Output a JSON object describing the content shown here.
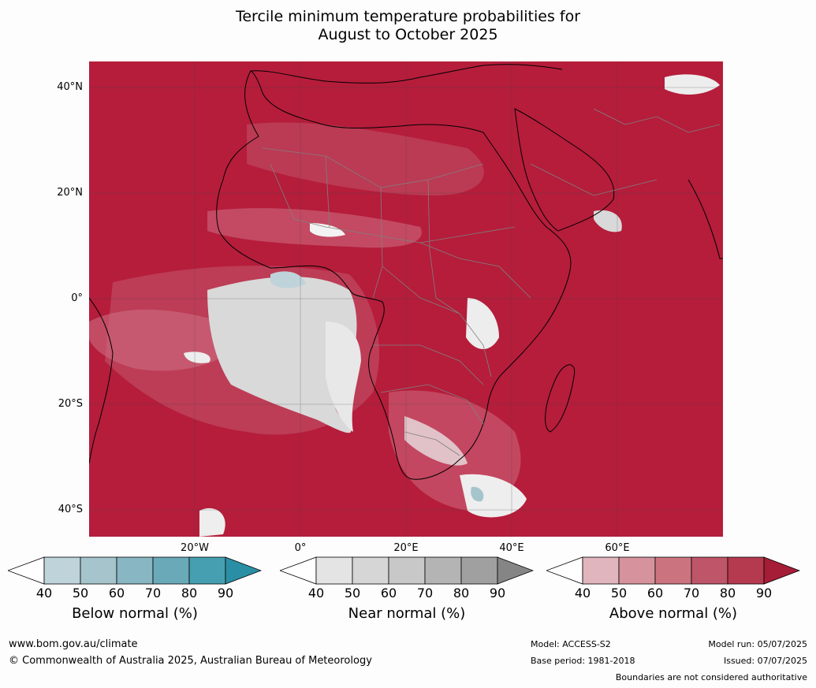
{
  "title": {
    "line1": "Tercile minimum temperature probabilities for",
    "line2": "August to October 2025"
  },
  "map": {
    "lat_labels": [
      "40°N",
      "20°N",
      "0°",
      "20°S",
      "40°S"
    ],
    "lon_labels": [
      "20°W",
      "0°",
      "20°E",
      "40°E",
      "60°E"
    ],
    "background_color": "#b51d3b",
    "land_border_color": "#000000",
    "country_border_color": "#808080"
  },
  "colorbars": [
    {
      "label": "Below normal (%)",
      "ticks": [
        "40",
        "50",
        "60",
        "70",
        "80",
        "90"
      ],
      "colors": [
        "#ffffff",
        "#bfd3da",
        "#a6c4cb",
        "#88b6c2",
        "#6aa9b8",
        "#469fb1",
        "#2a8fa5"
      ]
    },
    {
      "label": "Near normal (%)",
      "ticks": [
        "40",
        "50",
        "60",
        "70",
        "80",
        "90"
      ],
      "colors": [
        "#ffffff",
        "#e4e4e4",
        "#d6d6d6",
        "#c8c8c8",
        "#b4b4b4",
        "#a0a0a0",
        "#858585"
      ]
    },
    {
      "label": "Above normal (%)",
      "ticks": [
        "40",
        "50",
        "60",
        "70",
        "80",
        "90"
      ],
      "colors": [
        "#ffffff",
        "#e1b5bd",
        "#d6939d",
        "#cb7480",
        "#bf5568",
        "#b53a50",
        "#a51d36"
      ]
    }
  ],
  "footer": {
    "website": "www.bom.gov.au/climate",
    "copyright": "© Commonwealth of Australia 2025, Australian Bureau of Meteorology",
    "model": "Model: ACCESS-S2",
    "base_period": "Base period: 1981-2018",
    "model_run": "Model run: 05/07/2025",
    "issued": "Issued: 07/07/2025",
    "disclaimer": "Boundaries are not considered authoritative"
  }
}
